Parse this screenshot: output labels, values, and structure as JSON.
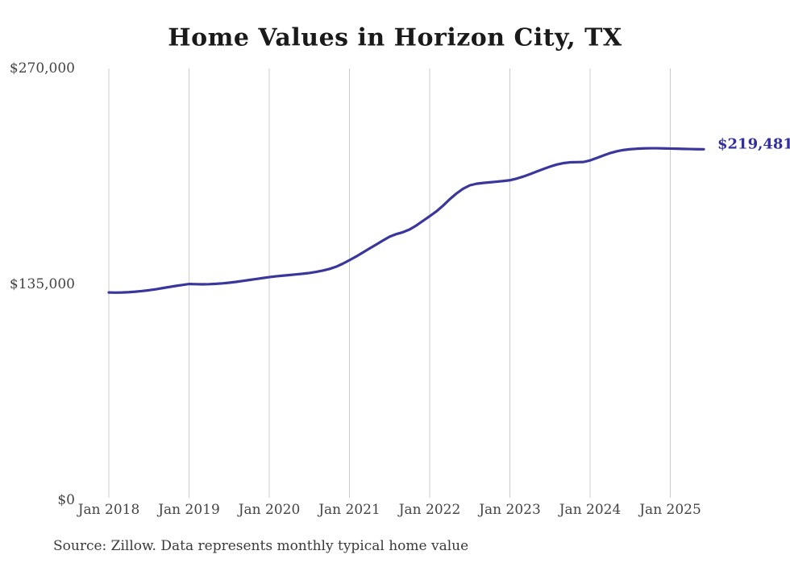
{
  "title": "Home Values in Horizon City, TX",
  "source_note": "Source: Zillow. Data represents monthly typical home value",
  "end_label": "$219,481",
  "colors": {
    "line": "#3a379c",
    "end_label": "#312e9e",
    "grid": "#cccccc",
    "axis_text": "#444444",
    "title_text": "#1a1a1a",
    "background": "#ffffff"
  },
  "chart_data": {
    "type": "line",
    "title": "Home Values in Horizon City, TX",
    "xlabel": "",
    "ylabel": "",
    "ylim": [
      0,
      270000
    ],
    "y_ticks": [
      0,
      135000,
      270000
    ],
    "y_tick_labels": [
      "$0",
      "$135,000",
      "$270,000"
    ],
    "x_tick_labels": [
      "Jan 2018",
      "Jan 2019",
      "Jan 2020",
      "Jan 2021",
      "Jan 2022",
      "Jan 2023",
      "Jan 2024",
      "Jan 2025"
    ],
    "x_start_month": "2018-01",
    "x_end_month": "2025-06",
    "grid": "vertical-only",
    "legend": "none",
    "end_value": 219481,
    "end_value_label": "$219,481",
    "series": [
      {
        "name": "Monthly typical home value",
        "monthly_values": [
          129900,
          129800,
          129900,
          130100,
          130400,
          130800,
          131300,
          131900,
          132600,
          133300,
          134000,
          134600,
          135200,
          135100,
          135000,
          135100,
          135300,
          135600,
          136000,
          136500,
          137100,
          137700,
          138300,
          138900,
          139500,
          140000,
          140400,
          140800,
          141200,
          141600,
          142100,
          142800,
          143600,
          144600,
          146000,
          147900,
          150100,
          152400,
          154900,
          157400,
          159900,
          162400,
          164800,
          166400,
          167600,
          169300,
          171800,
          174700,
          177600,
          180600,
          184200,
          188200,
          191800,
          194800,
          196900,
          197900,
          198400,
          198800,
          199200,
          199600,
          200100,
          201100,
          202400,
          203900,
          205500,
          207100,
          208600,
          209900,
          210800,
          211300,
          211400,
          211500,
          212500,
          214000,
          215600,
          217100,
          218200,
          219000,
          219500,
          219800,
          220000,
          220100,
          220100,
          220000,
          219900,
          219800,
          219700,
          219600,
          219500,
          219481
        ]
      }
    ]
  }
}
